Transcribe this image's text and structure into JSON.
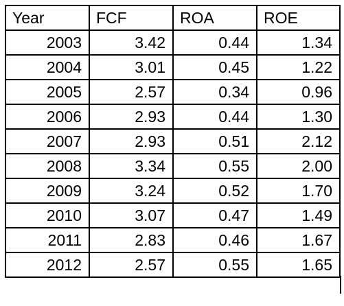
{
  "table": {
    "headers": [
      "Year",
      "FCF",
      "ROA",
      "ROE"
    ],
    "rows": [
      [
        "2003",
        "3.42",
        "0.44",
        "1.34"
      ],
      [
        "2004",
        "3.01",
        "0.45",
        "1.22"
      ],
      [
        "2005",
        "2.57",
        "0.34",
        "0.96"
      ],
      [
        "2006",
        "2.93",
        "0.44",
        "1.30"
      ],
      [
        "2007",
        "2.93",
        "0.51",
        "2.12"
      ],
      [
        "2008",
        "3.34",
        "0.55",
        "2.00"
      ],
      [
        "2009",
        "3.24",
        "0.52",
        "1.70"
      ],
      [
        "2010",
        "3.07",
        "0.47",
        "1.49"
      ],
      [
        "2011",
        "2.83",
        "0.46",
        "1.67"
      ],
      [
        "2012",
        "2.57",
        "0.55",
        "1.65"
      ]
    ]
  },
  "chart_data": {
    "type": "table",
    "columns": [
      "Year",
      "FCF",
      "ROA",
      "ROE"
    ],
    "rows": [
      [
        2003,
        3.42,
        0.44,
        1.34
      ],
      [
        2004,
        3.01,
        0.45,
        1.22
      ],
      [
        2005,
        2.57,
        0.34,
        0.96
      ],
      [
        2006,
        2.93,
        0.44,
        1.3
      ],
      [
        2007,
        2.93,
        0.51,
        2.12
      ],
      [
        2008,
        3.34,
        0.55,
        2.0
      ],
      [
        2009,
        3.24,
        0.52,
        1.7
      ],
      [
        2010,
        3.07,
        0.47,
        1.49
      ],
      [
        2011,
        2.83,
        0.46,
        1.67
      ],
      [
        2012,
        2.57,
        0.55,
        1.65
      ]
    ]
  }
}
